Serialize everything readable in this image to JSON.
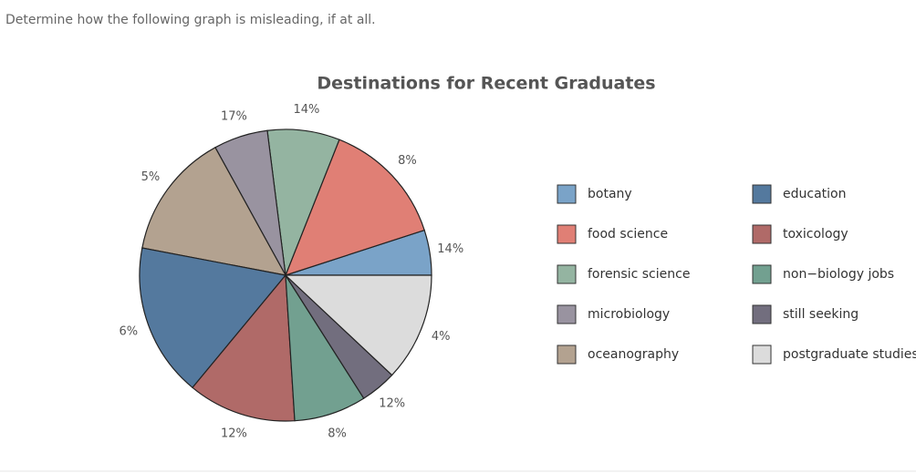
{
  "question": "Determine how the following graph is misleading, if at all.",
  "chart_data": {
    "type": "pie",
    "title": "Destinations for Recent Graduates",
    "categories": [
      "botany",
      "food science",
      "forensic science",
      "microbiology",
      "oceanography",
      "education",
      "toxicology",
      "non−biology jobs",
      "still seeking",
      "postgraduate studies"
    ],
    "values": [
      14,
      8,
      14,
      17,
      5,
      6,
      12,
      8,
      12,
      4
    ],
    "value_labels": [
      "14%",
      "8%",
      "14%",
      "17%",
      "5%",
      "6%",
      "12%",
      "8%",
      "12%",
      "4%"
    ],
    "drawn_shares": [
      5,
      14,
      8,
      6,
      14,
      17,
      12,
      8,
      4,
      12
    ],
    "colors": [
      "#7aa3c8",
      "#e07f75",
      "#94b4a1",
      "#9993a0",
      "#b3a290",
      "#54799e",
      "#b06a68",
      "#72a090",
      "#726e7e",
      "#dcdcdc"
    ]
  }
}
